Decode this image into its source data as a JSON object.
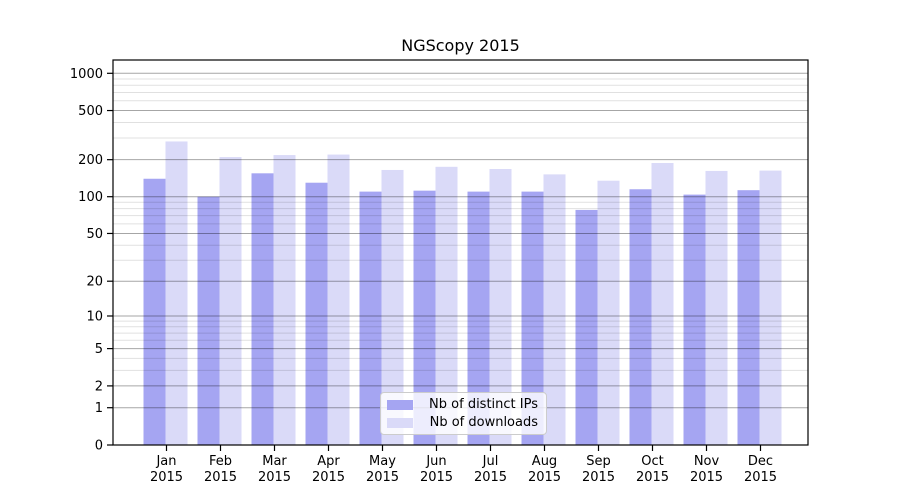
{
  "chart_data": {
    "type": "bar",
    "title": "NGScopy 2015",
    "y_scale": "log10(1+x)",
    "categories": [
      "Jan",
      "Feb",
      "Mar",
      "Apr",
      "May",
      "Jun",
      "Jul",
      "Aug",
      "Sep",
      "Oct",
      "Nov",
      "Dec"
    ],
    "x_year_label": "2015",
    "series": [
      {
        "name": "Nb of distinct IPs",
        "color": "#a5a5f2",
        "values": [
          140,
          100,
          155,
          130,
          110,
          112,
          110,
          110,
          78,
          115,
          104,
          113
        ]
      },
      {
        "name": "Nb of downloads",
        "color": "#dadaf8",
        "values": [
          281,
          210,
          218,
          220,
          165,
          175,
          168,
          152,
          135,
          188,
          162,
          163
        ]
      }
    ],
    "y_ticks": [
      0,
      1,
      2,
      5,
      10,
      20,
      50,
      100,
      200,
      500,
      1000
    ],
    "y_minor_ticks": [
      3,
      4,
      6,
      7,
      8,
      9,
      30,
      40,
      60,
      70,
      80,
      90,
      300,
      400,
      600,
      700,
      800,
      900
    ],
    "ylim": [
      0,
      1280
    ],
    "grid": "major+minor horizontal",
    "legend_position": "lower center"
  }
}
